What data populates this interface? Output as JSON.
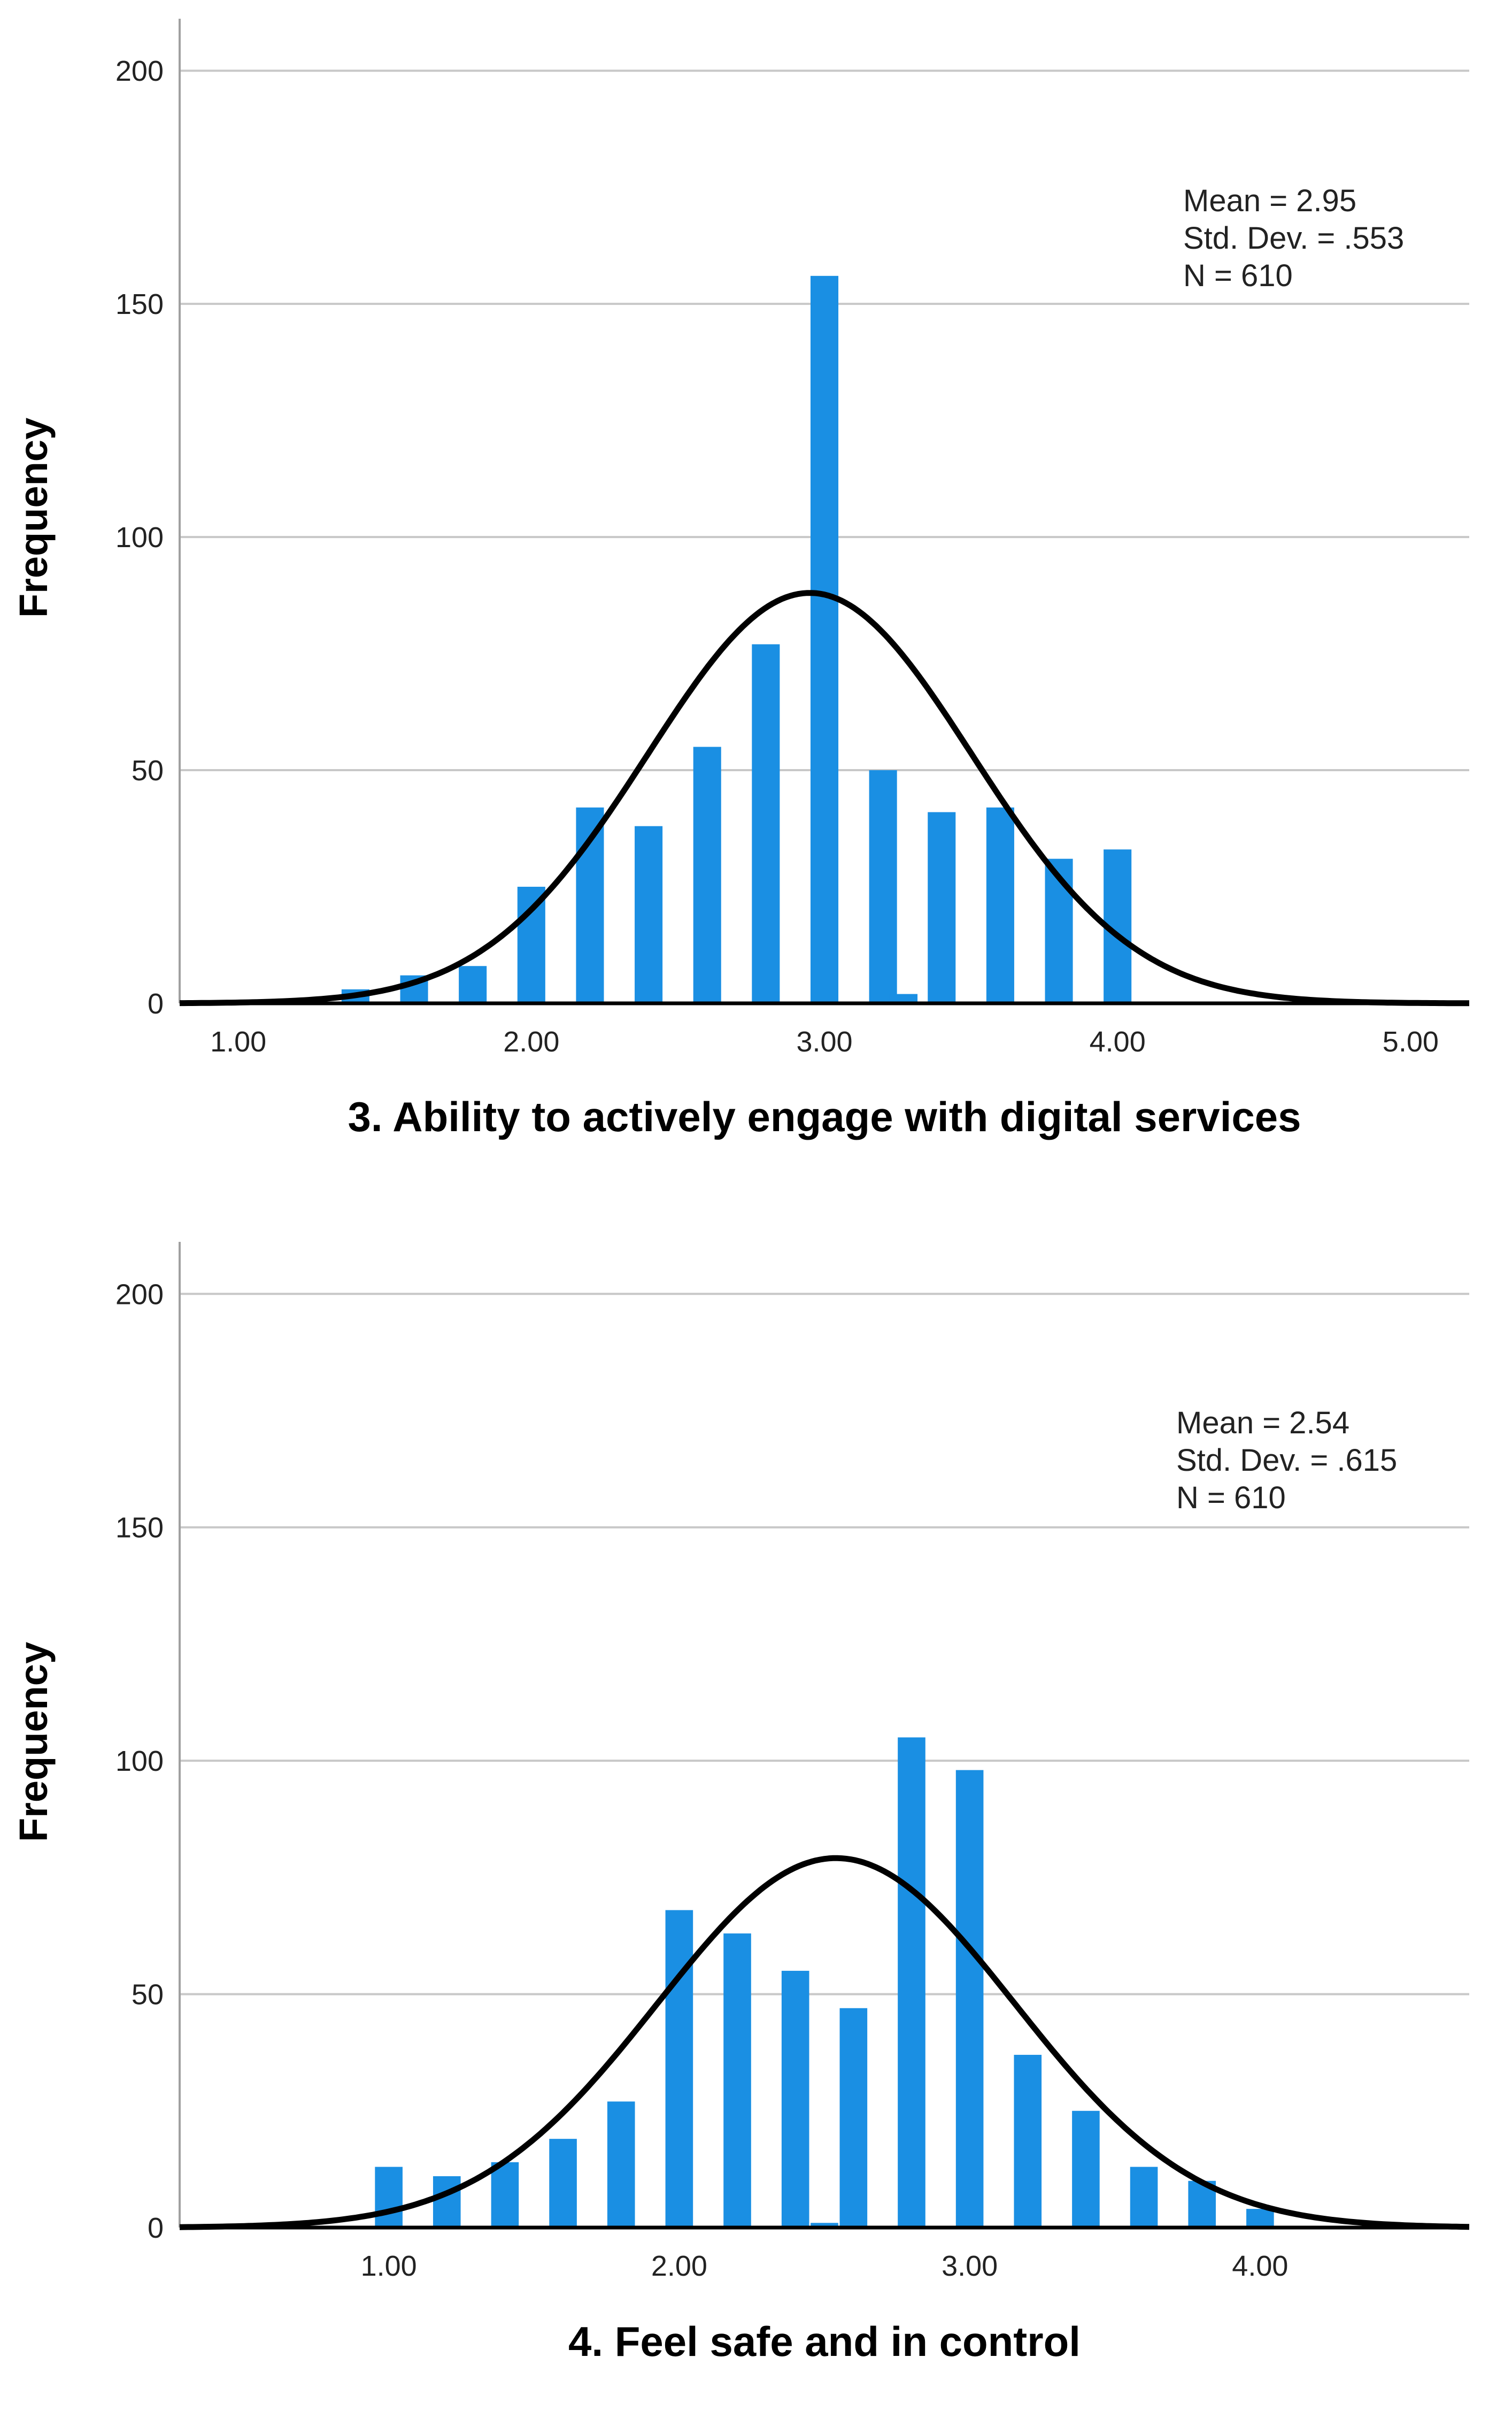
{
  "chart_data": [
    {
      "type": "bar",
      "title": "",
      "xlabel": "3. Ability to actively engage with digital services",
      "ylabel": "Frequency",
      "xlim": [
        0.8,
        5.2
      ],
      "ylim": [
        0,
        210
      ],
      "xticks": [
        1,
        2,
        3,
        4,
        5
      ],
      "xtick_labels": [
        "1.00",
        "2.00",
        "3.00",
        "4.00",
        "5.00"
      ],
      "yticks": [
        0,
        50,
        100,
        150,
        200
      ],
      "ytick_labels": [
        "0",
        "50",
        "100",
        "150",
        "200"
      ],
      "grid": true,
      "bar_color": "#1a8fe3",
      "bar_width": 0.095,
      "x": [
        1.4,
        1.6,
        1.8,
        2.0,
        2.2,
        2.4,
        2.6,
        2.8,
        3.0,
        3.2,
        3.27,
        3.4,
        3.6,
        3.8,
        4.0
      ],
      "values": [
        3,
        6,
        8,
        25,
        42,
        38,
        55,
        77,
        156,
        50,
        2,
        41,
        42,
        31,
        33
      ],
      "normal_curve": {
        "mean": 2.95,
        "sd": 0.553,
        "n": 610,
        "bin_width": 0.2,
        "color": "#000000"
      },
      "stats": [
        "Mean = 2.95",
        "Std. Dev. = .553",
        "N = 610"
      ],
      "stats_position": "top-right"
    },
    {
      "type": "bar",
      "title": "",
      "xlabel": "4. Feel safe and in control",
      "ylabel": "Frequency",
      "xlim": [
        0.28,
        4.72
      ],
      "ylim": [
        0,
        210
      ],
      "xticks": [
        1,
        2,
        3,
        4
      ],
      "xtick_labels": [
        "1.00",
        "2.00",
        "3.00",
        "4.00"
      ],
      "yticks": [
        0,
        50,
        100,
        150,
        200
      ],
      "ytick_labels": [
        "0",
        "50",
        "100",
        "150",
        "200"
      ],
      "grid": true,
      "bar_color": "#1a8fe3",
      "bar_width": 0.095,
      "x": [
        1.0,
        1.2,
        1.4,
        1.6,
        1.8,
        2.0,
        2.2,
        2.4,
        2.5,
        2.6,
        2.8,
        3.0,
        3.2,
        3.4,
        3.6,
        3.8,
        4.0
      ],
      "values": [
        13,
        11,
        14,
        19,
        27,
        68,
        63,
        55,
        1,
        47,
        105,
        98,
        37,
        25,
        13,
        10,
        4
      ],
      "normal_curve": {
        "mean": 2.54,
        "sd": 0.615,
        "n": 610,
        "bin_width": 0.2,
        "color": "#000000"
      },
      "stats": [
        "Mean = 2.54",
        "Std. Dev. = .615",
        "N = 610"
      ],
      "stats_position": "top-right"
    }
  ]
}
